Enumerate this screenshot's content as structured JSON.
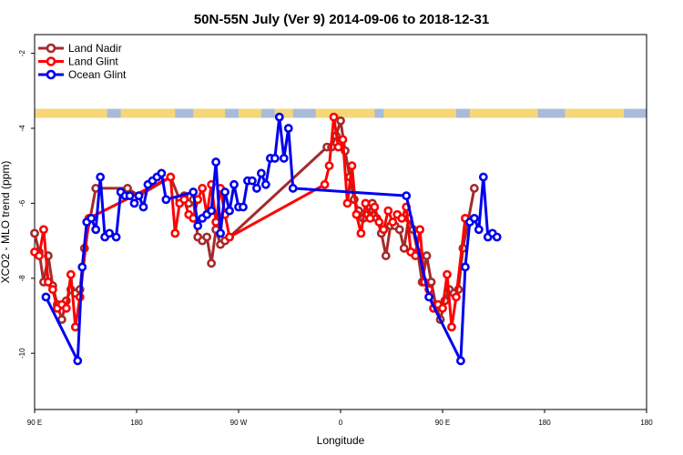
{
  "chart_data": {
    "type": "line",
    "title": "50N-55N July (Ver 9)   2014-09-06 to 2018-12-31",
    "xlabel": "Longitude",
    "ylabel": "XCO2 - MLO trend (ppm)",
    "xlim": [
      -90,
      180
    ],
    "ylim": [
      -11.5,
      -1.5
    ],
    "x_ticks": [
      {
        "value": -90,
        "label": "90 E"
      },
      {
        "value": -45,
        "label": "180"
      },
      {
        "value": 0,
        "label": "90 W"
      },
      {
        "value": 45,
        "label": "0"
      },
      {
        "value": 90,
        "label": "90 E"
      },
      {
        "value": 135,
        "label": "180"
      }
    ],
    "y_ticks": [
      {
        "value": -2,
        "label": "-2"
      },
      {
        "value": -4,
        "label": "-4"
      },
      {
        "value": -6,
        "label": "-6"
      },
      {
        "value": -8,
        "label": "-8"
      },
      {
        "value": -10,
        "label": "-10"
      }
    ],
    "legend_position": "top-left",
    "grid": false,
    "map_strip": {
      "y_range": [
        -3.72,
        -3.48
      ],
      "ocean_color": "#a8bbd8",
      "land_color": "#f5d77a"
    },
    "series": [
      {
        "name": "Land Nadir",
        "color": "#a52a2a",
        "points": [
          [
            -90,
            -6.8
          ],
          [
            -88,
            -7.3
          ],
          [
            -86,
            -8.1
          ],
          [
            -84,
            -7.4
          ],
          [
            -82,
            -8.2
          ],
          [
            -80,
            -8.7
          ],
          [
            -78,
            -9.1
          ],
          [
            -76,
            -8.6
          ],
          [
            -74,
            -8.3
          ],
          [
            -72,
            -8.4
          ],
          [
            -70,
            -8.3
          ],
          [
            -68,
            -7.2
          ],
          [
            -63,
            -5.6
          ],
          [
            -49,
            -5.6
          ],
          [
            -44,
            -5.8
          ],
          [
            -30,
            -5.3
          ],
          [
            -26,
            -5.9
          ],
          [
            -24,
            -5.8
          ],
          [
            -22,
            -6.0
          ],
          [
            -20,
            -5.9
          ],
          [
            -18,
            -6.9
          ],
          [
            -16,
            -7.0
          ],
          [
            -14,
            -6.9
          ],
          [
            -12,
            -7.6
          ],
          [
            -10,
            -6.7
          ],
          [
            -8,
            -7.1
          ],
          [
            -6,
            -7.0
          ],
          [
            -4,
            -6.9
          ],
          [
            39,
            -4.5
          ],
          [
            41,
            -4.5
          ],
          [
            43,
            -4.2
          ],
          [
            45,
            -3.8
          ],
          [
            47,
            -4.6
          ],
          [
            49,
            -5.3
          ],
          [
            51,
            -5.9
          ],
          [
            53,
            -6.2
          ],
          [
            55,
            -6.4
          ],
          [
            57,
            -6.3
          ],
          [
            59,
            -6.0
          ],
          [
            61,
            -6.4
          ],
          [
            63,
            -6.8
          ],
          [
            65,
            -7.4
          ],
          [
            67,
            -6.6
          ],
          [
            69,
            -6.6
          ],
          [
            71,
            -6.7
          ],
          [
            73,
            -7.2
          ],
          [
            75,
            -6.4
          ],
          [
            77,
            -6.7
          ],
          [
            79,
            -7.3
          ],
          [
            81,
            -8.1
          ],
          [
            83,
            -7.4
          ],
          [
            85,
            -8.1
          ],
          [
            87,
            -8.7
          ],
          [
            89,
            -9.1
          ],
          [
            91,
            -8.6
          ],
          [
            93,
            -8.3
          ],
          [
            95,
            -8.4
          ],
          [
            97,
            -8.3
          ],
          [
            99,
            -7.2
          ],
          [
            104,
            -5.6
          ]
        ]
      },
      {
        "name": "Land Glint",
        "color": "#ff0000",
        "points": [
          [
            -90,
            -7.3
          ],
          [
            -88,
            -7.4
          ],
          [
            -86,
            -6.7
          ],
          [
            -84,
            -8.1
          ],
          [
            -82,
            -8.3
          ],
          [
            -80,
            -8.8
          ],
          [
            -78,
            -8.7
          ],
          [
            -76,
            -8.8
          ],
          [
            -74,
            -7.9
          ],
          [
            -72,
            -9.3
          ],
          [
            -70,
            -8.5
          ],
          [
            -66,
            -6.4
          ],
          [
            -30,
            -5.3
          ],
          [
            -28,
            -6.8
          ],
          [
            -26,
            -6.0
          ],
          [
            -24,
            -5.9
          ],
          [
            -22,
            -6.3
          ],
          [
            -20,
            -6.4
          ],
          [
            -18,
            -5.9
          ],
          [
            -16,
            -5.6
          ],
          [
            -14,
            -6.3
          ],
          [
            -12,
            -5.5
          ],
          [
            -10,
            -6.5
          ],
          [
            -8,
            -5.6
          ],
          [
            -6,
            -6.3
          ],
          [
            -4,
            -6.9
          ],
          [
            38,
            -5.5
          ],
          [
            40,
            -5.0
          ],
          [
            42,
            -3.7
          ],
          [
            44,
            -4.5
          ],
          [
            46,
            -4.3
          ],
          [
            48,
            -6.0
          ],
          [
            50,
            -5.0
          ],
          [
            52,
            -6.3
          ],
          [
            54,
            -6.8
          ],
          [
            56,
            -6.0
          ],
          [
            58,
            -6.4
          ],
          [
            60,
            -6.1
          ],
          [
            62,
            -6.5
          ],
          [
            64,
            -6.7
          ],
          [
            66,
            -6.2
          ],
          [
            68,
            -6.5
          ],
          [
            70,
            -6.3
          ],
          [
            72,
            -6.4
          ],
          [
            74,
            -6.1
          ],
          [
            76,
            -7.3
          ],
          [
            78,
            -7.4
          ],
          [
            80,
            -6.7
          ],
          [
            82,
            -8.1
          ],
          [
            84,
            -8.3
          ],
          [
            86,
            -8.8
          ],
          [
            88,
            -8.7
          ],
          [
            90,
            -8.8
          ],
          [
            92,
            -7.9
          ],
          [
            94,
            -9.3
          ],
          [
            96,
            -8.5
          ],
          [
            100,
            -6.4
          ]
        ]
      },
      {
        "name": "Ocean Glint",
        "color": "#0000ee",
        "points": [
          [
            -85,
            -8.5
          ],
          [
            -71,
            -10.2
          ],
          [
            -69,
            -7.7
          ],
          [
            -67,
            -6.5
          ],
          [
            -65,
            -6.4
          ],
          [
            -63,
            -6.7
          ],
          [
            -61,
            -5.3
          ],
          [
            -59,
            -6.9
          ],
          [
            -57,
            -6.8
          ],
          [
            -54,
            -6.9
          ],
          [
            -52,
            -5.7
          ],
          [
            -50,
            -5.8
          ],
          [
            -48,
            -5.8
          ],
          [
            -46,
            -6.0
          ],
          [
            -44,
            -5.8
          ],
          [
            -42,
            -6.1
          ],
          [
            -40,
            -5.5
          ],
          [
            -38,
            -5.4
          ],
          [
            -36,
            -5.3
          ],
          [
            -34,
            -5.2
          ],
          [
            -32,
            -5.9
          ],
          [
            -20,
            -5.7
          ],
          [
            -18,
            -6.6
          ],
          [
            -16,
            -6.4
          ],
          [
            -14,
            -6.3
          ],
          [
            -12,
            -6.2
          ],
          [
            -10,
            -4.9
          ],
          [
            -8,
            -6.8
          ],
          [
            -6,
            -5.7
          ],
          [
            -4,
            -6.2
          ],
          [
            -2,
            -5.5
          ],
          [
            0,
            -6.1
          ],
          [
            2,
            -6.1
          ],
          [
            4,
            -5.4
          ],
          [
            6,
            -5.4
          ],
          [
            8,
            -5.6
          ],
          [
            10,
            -5.2
          ],
          [
            12,
            -5.5
          ],
          [
            14,
            -4.8
          ],
          [
            16,
            -4.8
          ],
          [
            18,
            -3.7
          ],
          [
            20,
            -4.8
          ],
          [
            22,
            -4.0
          ],
          [
            24,
            -5.6
          ],
          [
            74,
            -5.8
          ],
          [
            84,
            -8.5
          ],
          [
            98,
            -10.2
          ],
          [
            100,
            -7.7
          ],
          [
            102,
            -6.5
          ],
          [
            104,
            -6.4
          ],
          [
            106,
            -6.7
          ],
          [
            108,
            -5.3
          ],
          [
            110,
            -6.9
          ],
          [
            112,
            -6.8
          ],
          [
            114,
            -6.9
          ]
        ]
      }
    ]
  }
}
